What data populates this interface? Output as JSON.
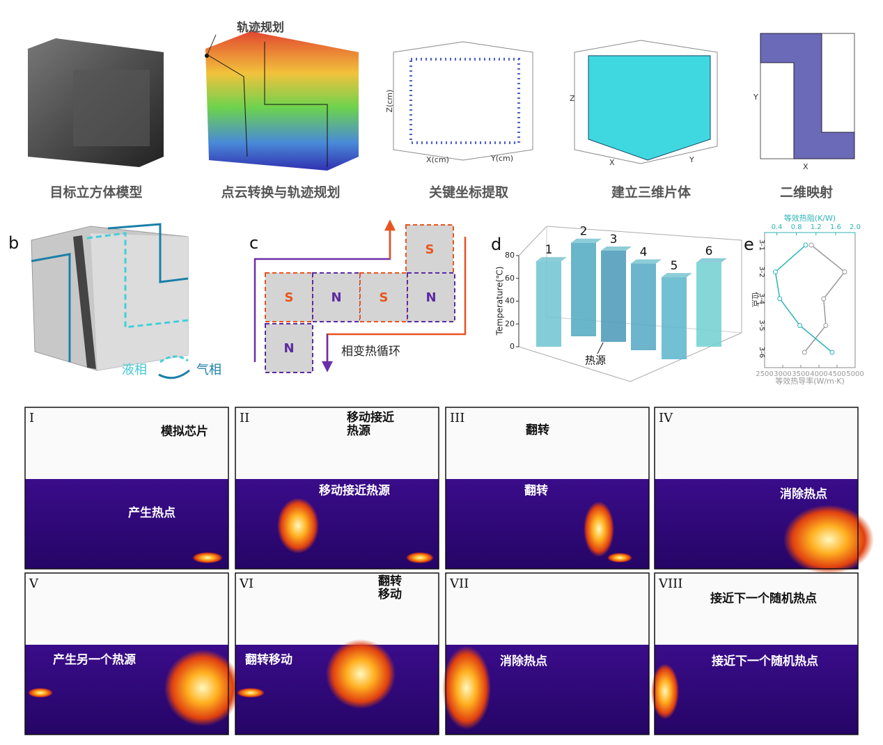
{
  "top_panels": [
    {
      "caption": "目标立方体模型"
    },
    {
      "caption": "点云转换与轨迹规划",
      "annotation": "轨迹规划"
    },
    {
      "caption": "关键坐标提取",
      "axis_labels": [
        "Z(cm)",
        "X(cm)",
        "Y(cm)"
      ]
    },
    {
      "caption": "建立三维片体",
      "axis_labels": [
        "Z",
        "X",
        "Y"
      ]
    },
    {
      "caption": "二维映射",
      "axis_labels": [
        "Y",
        "X"
      ]
    }
  ],
  "panel_b": {
    "label": "b",
    "legend": [
      "液相",
      "气相"
    ]
  },
  "panel_c": {
    "label": "c",
    "cells": [
      "S",
      "S",
      "N",
      "S",
      "N",
      "N"
    ],
    "caption": "相变热循环"
  },
  "chart_data": [
    {
      "type": "bar3d",
      "label": "d",
      "ylabel": "Temperature(℃)",
      "annotation": "热源",
      "categories": [
        "1",
        "2",
        "3",
        "4",
        "5",
        "6"
      ],
      "values": [
        75,
        82,
        80,
        76,
        72,
        74
      ],
      "color": "#5cb8c8",
      "ylim": [
        0,
        80
      ],
      "yticks": [
        0,
        20,
        40,
        60,
        80
      ]
    },
    {
      "type": "line",
      "label": "e",
      "ylabel": "位点",
      "xlabel": "等效热导率(W/m·K)",
      "x2label": "等效热阻(K/W)",
      "categories": [
        "3-1",
        "3-2",
        "3-4",
        "3-5",
        "3-6"
      ],
      "xlim": [
        2500,
        5000
      ],
      "xticks": [
        2500,
        3000,
        3500,
        4000,
        4500,
        5000
      ],
      "x2lim": [
        0.15,
        2.0
      ],
      "x2ticks": [
        0.4,
        0.8,
        1.2,
        1.6,
        {
          "value": 2.0,
          "label": "2.0"
        }
      ],
      "series": [
        {
          "color": "#999999",
          "axis": "x",
          "values": [
            3790,
            4710,
            4130,
            4190,
            3600
          ]
        },
        {
          "color": "#2bb3b8",
          "axis": "x2",
          "values": [
            0.99,
            0.37,
            0.46,
            0.87,
            1.53
          ]
        }
      ]
    }
  ],
  "photo_panels": [
    {
      "numeral": "I",
      "top_text": [
        "模拟芯片"
      ],
      "bottom_text": "产生热点"
    },
    {
      "numeral": "II",
      "top_text": [
        "移动接近",
        "热源"
      ],
      "bottom_text": "移动接近热源"
    },
    {
      "numeral": "III",
      "top_text": [
        "翻转"
      ],
      "bottom_text": "翻转"
    },
    {
      "numeral": "IV",
      "top_text": [],
      "bottom_text": "消除热点"
    },
    {
      "numeral": "V",
      "top_text": [],
      "bottom_text": "产生另一个热源"
    },
    {
      "numeral": "VI",
      "top_text": [
        "翻转",
        "移动"
      ],
      "bottom_text": "翻转移动"
    },
    {
      "numeral": "VII",
      "top_text": [],
      "bottom_text": "消除热点"
    },
    {
      "numeral": "VIII",
      "top_text": [
        "接近下一个随机热点"
      ],
      "bottom_text": "接近下一个随机热点"
    }
  ]
}
